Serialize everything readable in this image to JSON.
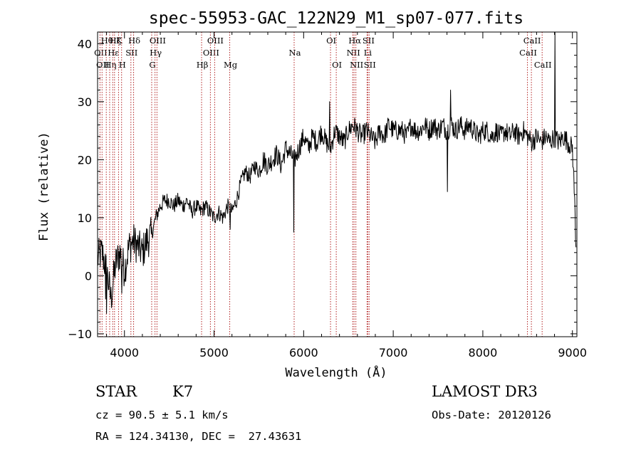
{
  "chart_data": {
    "type": "line",
    "title": "spec-55953-GAC_122N29_M1_sp07-077.fits",
    "xlabel": "Wavelength (Å)",
    "ylabel": "Flux (relative)",
    "xlim": [
      3700,
      9050
    ],
    "ylim": [
      -10.5,
      42
    ],
    "x_ticks": [
      4000,
      5000,
      6000,
      7000,
      8000,
      9000
    ],
    "y_ticks": [
      -10,
      0,
      10,
      20,
      30,
      40
    ],
    "grid": false,
    "legend": "none",
    "line_color": "#000000",
    "marker_color": "#b22222",
    "series": [
      {
        "x": [
          3700,
          3750,
          3800,
          3850,
          3900,
          3950,
          4000,
          4050,
          4100,
          4150,
          4200,
          4250,
          4300,
          4350,
          4400,
          4450,
          4500,
          4550,
          4600,
          4650,
          4700,
          4750,
          4800,
          4850,
          4900,
          4950,
          5000,
          5050,
          5100,
          5150,
          5200,
          5250,
          5300,
          5350,
          5400,
          5450,
          5500,
          5550,
          5600,
          5650,
          5700,
          5750,
          5800,
          5850,
          5900,
          5950,
          6000,
          6050,
          6100,
          6150,
          6200,
          6250,
          6300,
          6350,
          6400,
          6450,
          6500,
          6550,
          6600,
          6650,
          6700,
          6750,
          6800,
          6850,
          6900,
          6950,
          7000,
          7050,
          7100,
          7150,
          7200,
          7250,
          7300,
          7350,
          7400,
          7450,
          7500,
          7550,
          7600,
          7650,
          7700,
          7750,
          7800,
          7850,
          7900,
          7950,
          8000,
          8050,
          8100,
          8150,
          8200,
          8250,
          8300,
          8350,
          8400,
          8450,
          8500,
          8550,
          8600,
          8650,
          8700,
          8750,
          8800,
          8850,
          8900,
          8950,
          9000,
          9020,
          9040
        ],
        "y": [
          3,
          4,
          1,
          -4,
          2,
          4,
          1,
          5,
          6,
          5,
          4,
          6,
          7,
          10,
          12,
          13,
          13,
          12,
          13,
          12,
          13,
          11,
          12,
          11,
          12,
          11,
          10,
          11,
          10,
          12,
          11,
          13,
          16,
          18,
          17,
          19,
          18,
          20,
          19,
          20,
          21,
          19,
          22,
          21,
          20,
          22,
          24,
          22,
          24,
          23,
          25,
          23,
          22,
          25,
          24,
          23,
          25,
          26,
          25,
          24,
          25,
          24,
          23,
          25,
          24,
          26,
          25,
          25,
          25,
          24,
          26,
          25,
          25,
          26,
          25,
          26,
          25,
          26,
          25,
          26,
          25,
          26,
          25,
          26,
          25,
          24,
          25,
          25,
          24,
          25,
          24,
          25,
          24,
          25,
          24,
          25,
          24,
          23,
          24,
          23,
          24,
          23,
          24,
          23,
          24,
          23,
          22,
          15,
          5
        ]
      }
    ],
    "spikes": [
      {
        "x": 3800,
        "y": -6.5
      },
      {
        "x": 3790,
        "y": -4
      },
      {
        "x": 3970,
        "y": -3
      },
      {
        "x": 5180,
        "y": 8
      },
      {
        "x": 5892,
        "y": 7.5
      },
      {
        "x": 6290,
        "y": 30
      },
      {
        "x": 7605,
        "y": 14.5
      },
      {
        "x": 7640,
        "y": 32
      },
      {
        "x": 8805,
        "y": 42
      }
    ],
    "line_markers": [
      {
        "x": 3727,
        "label": "OII",
        "row": 1
      },
      {
        "x": 3750,
        "label": "OII",
        "row": 2
      },
      {
        "x": 3797,
        "label": "Hθ",
        "row": 0
      },
      {
        "x": 3835,
        "label": "Hη",
        "row": 2
      },
      {
        "x": 3869,
        "label": "Hε",
        "row": 1
      },
      {
        "x": 3889,
        "label": "Hζ",
        "row": 0
      },
      {
        "x": 3934,
        "label": "K",
        "row": 0
      },
      {
        "x": 3968,
        "label": "H",
        "row": 2
      },
      {
        "x": 4072,
        "label": "SII",
        "row": 1
      },
      {
        "x": 4102,
        "label": "Hδ",
        "row": 0
      },
      {
        "x": 4304,
        "label": "G",
        "row": 2
      },
      {
        "x": 4341,
        "label": "Hγ",
        "row": 1
      },
      {
        "x": 4363,
        "label": "OIII",
        "row": 0
      },
      {
        "x": 4861,
        "label": "Hβ",
        "row": 2
      },
      {
        "x": 4959,
        "label": "OIII",
        "row": 1
      },
      {
        "x": 5007,
        "label": "OIII",
        "row": 0
      },
      {
        "x": 5175,
        "label": "Mg",
        "row": 2
      },
      {
        "x": 5894,
        "label": "Na",
        "row": 1
      },
      {
        "x": 6300,
        "label": "OI",
        "row": 0
      },
      {
        "x": 6364,
        "label": "OI",
        "row": 2
      },
      {
        "x": 6548,
        "label": "NII",
        "row": 1
      },
      {
        "x": 6563,
        "label": "Hα",
        "row": 0
      },
      {
        "x": 6583,
        "label": "NII",
        "row": 2
      },
      {
        "x": 6708,
        "label": "Li",
        "row": 1
      },
      {
        "x": 6716,
        "label": "SII",
        "row": 0
      },
      {
        "x": 6731,
        "label": "SII",
        "row": 2
      },
      {
        "x": 8498,
        "label": "CaII",
        "row": 1
      },
      {
        "x": 8542,
        "label": "CaII",
        "row": 0
      },
      {
        "x": 8662,
        "label": "CaII",
        "row": 2
      }
    ]
  },
  "info": {
    "class": "STAR",
    "subclass": "K7",
    "survey": "LAMOST DR3",
    "cz": "cz = 90.5 ± 5.1 km/s",
    "obs_date": "Obs-Date: 20120126",
    "coords": "RA = 124.34130, DEC =  27.43631"
  }
}
